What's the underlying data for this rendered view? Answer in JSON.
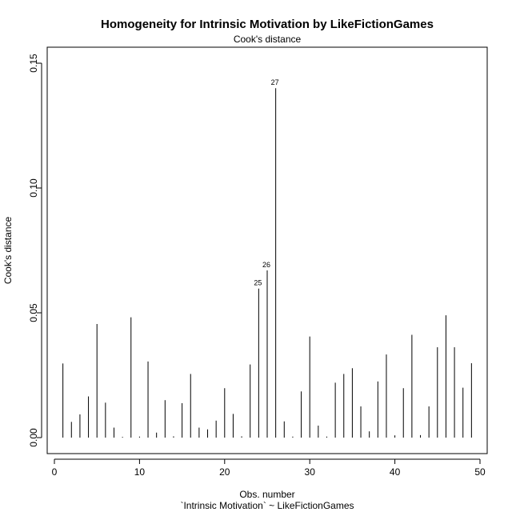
{
  "chart_data": {
    "type": "bar",
    "title": "Homogeneity for Intrinsic Motivation by LikeFictionGames",
    "subtitle": "Cook's distance",
    "xlabel": "Obs. number",
    "xlabel2": "`Intrinsic Motivation` ~ LikeFictionGames",
    "ylabel": "Cook's distance",
    "xlim": [
      0,
      50
    ],
    "ylim": [
      0,
      0.15
    ],
    "xticks": [
      0,
      10,
      20,
      30,
      40,
      50
    ],
    "xtick_labels": [
      "0",
      "10",
      "20",
      "30",
      "40",
      "50"
    ],
    "yticks": [
      0,
      0.05,
      0.1,
      0.15
    ],
    "ytick_labels": [
      "0.00",
      "0.05",
      "0.10",
      "0.15"
    ],
    "x": [
      1,
      2,
      3,
      4,
      5,
      6,
      7,
      8,
      9,
      10,
      11,
      12,
      13,
      14,
      15,
      16,
      17,
      18,
      19,
      20,
      21,
      22,
      23,
      24,
      25,
      26,
      27,
      28,
      29,
      30,
      31,
      32,
      33,
      34,
      35,
      36,
      37,
      38,
      39,
      40,
      41,
      42,
      43,
      44,
      45,
      46,
      47,
      48,
      49
    ],
    "values": [
      0.0297,
      0.0063,
      0.0093,
      0.0165,
      0.0455,
      0.014,
      0.004,
      0.0003,
      0.0482,
      0.0004,
      0.0305,
      0.002,
      0.015,
      0.0005,
      0.0138,
      0.0255,
      0.004,
      0.0033,
      0.0068,
      0.0198,
      0.0095,
      0.0005,
      0.0293,
      0.0597,
      0.067,
      0.14,
      0.0065,
      0.0004,
      0.0185,
      0.0405,
      0.0048,
      0.0004,
      0.022,
      0.0255,
      0.0278,
      0.0125,
      0.0025,
      0.0225,
      0.0333,
      0.0009,
      0.0198,
      0.0412,
      0.001,
      0.0125,
      0.0362,
      0.049,
      0.0362,
      0.02,
      0.0298
    ],
    "annotations": [
      {
        "obs": 25,
        "label": "25"
      },
      {
        "obs": 26,
        "label": "26"
      },
      {
        "obs": 27,
        "label": "27"
      }
    ]
  }
}
